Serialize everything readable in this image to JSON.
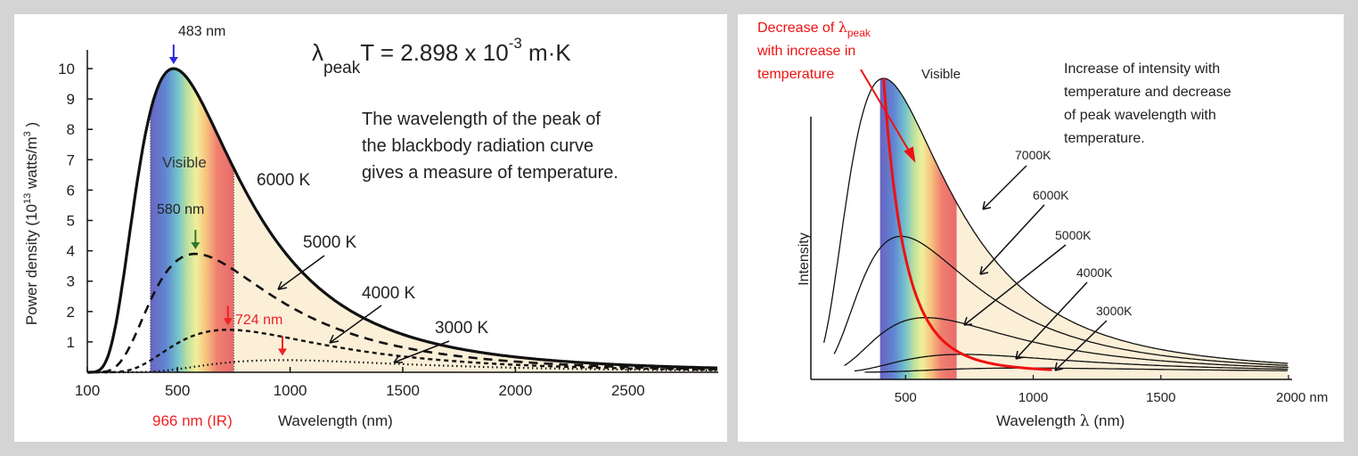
{
  "chart_data": [
    {
      "type": "line",
      "formula": {
        "lambda": "λ",
        "sub": "peak",
        "main": "T = 2.898  x 10",
        "exp": "-3",
        "unit": " m·K"
      },
      "caption": [
        "The wavelength of the peak of",
        "the blackbody radiation curve",
        "gives a measure of temperature."
      ],
      "xlabel": "Wavelength (nm)",
      "ylabel": {
        "pre": "Power density (10",
        "sup1": "13",
        "mid": " watts/m",
        "sup2": "3",
        "post": " )"
      },
      "xticks": [
        100,
        500,
        1000,
        1500,
        2000,
        2500
      ],
      "yticks": [
        1,
        2,
        3,
        4,
        5,
        6,
        7,
        8,
        9,
        10
      ],
      "xlim": [
        100,
        2900
      ],
      "ylim": [
        0,
        10.5
      ],
      "visible_band_nm": [
        380,
        750
      ],
      "visible_label": "Visible",
      "series": [
        {
          "name": "6000 K",
          "style": "solid",
          "peak_nm": 483,
          "peak_value": 10.0
        },
        {
          "name": "5000 K",
          "style": "dashed",
          "peak_nm": 580,
          "peak_value": 3.9
        },
        {
          "name": "4000 K",
          "style": "dotted-dash",
          "peak_nm": 724,
          "peak_value": 1.4
        },
        {
          "name": "3000 K",
          "style": "dotted",
          "peak_nm": 966,
          "peak_value": 0.4
        }
      ],
      "peak_labels": [
        "483 nm",
        "580 nm",
        "724 nm",
        "966 nm (IR)"
      ],
      "colors": {
        "blue_arrow": "#2a2adc",
        "green_arrow": "#2a7a2a",
        "red": "#ee2222"
      }
    },
    {
      "type": "line",
      "xlabel_pre": "Wavelength ",
      "xlabel_lambda": "λ",
      "xlabel_post": " (nm)",
      "ylabel": "Intensity",
      "xticks": [
        "500",
        "1000",
        "1500",
        "2000 nm"
      ],
      "xtick_values": [
        500,
        1000,
        1500,
        2000
      ],
      "visible_label": "Visible",
      "visible_band_nm": [
        400,
        700
      ],
      "series_labels": [
        "7000K",
        "6000K",
        "5000K",
        "4000K",
        "3000K"
      ],
      "temperatures": [
        7000,
        6000,
        5000,
        4000,
        3000
      ],
      "note": [
        "Increase of intensity with",
        "temperature and decrease",
        "of peak wavelength with",
        "temperature."
      ],
      "red_note": {
        "pre": "Decrease of ",
        "lambda": "λ",
        "sub": "peak",
        "line2": "with increase in",
        "line3": "temperature"
      },
      "colors": {
        "red": "#ee1111"
      }
    }
  ]
}
